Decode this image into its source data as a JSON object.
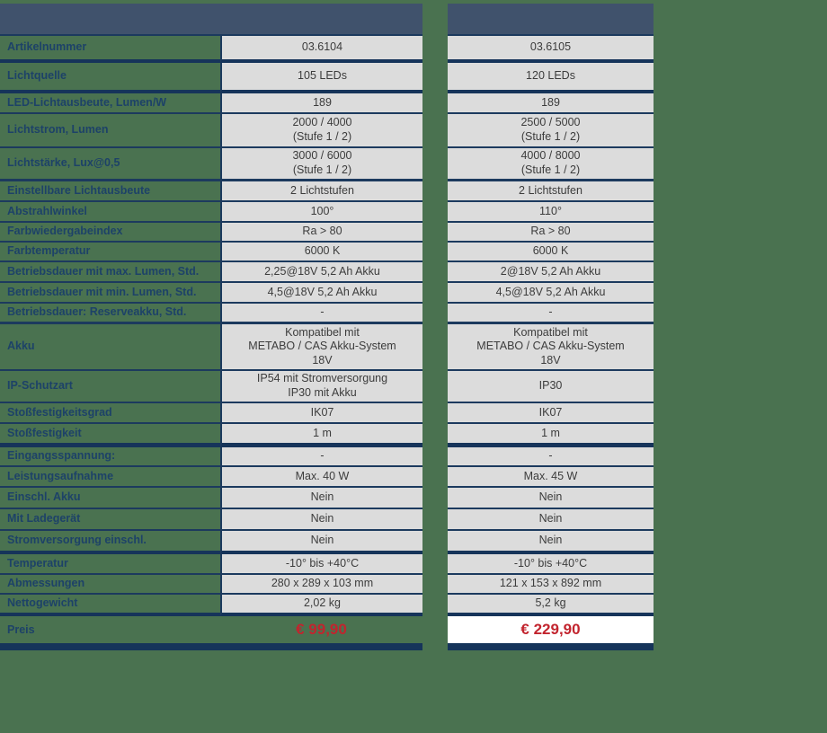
{
  "colors": {
    "background_green": "#4a7250",
    "header_slate": "#40526c",
    "separator_navy": "#1c3a5e",
    "cell_gray": "#dcdcdc",
    "label_text": "#1d4268",
    "price_red": "#c2242e",
    "price_cell_white": "#ffffff"
  },
  "table": {
    "header_col1": "",
    "header_col2": "",
    "rows": [
      {
        "label": "Artikelnummer",
        "col1": "03.6104",
        "col2": "03.6105"
      },
      {
        "label": "Lichtquelle",
        "col1": "105 LEDs",
        "col2": "120 LEDs"
      },
      {
        "label": "LED-Lichtausbeute, Lumen/W",
        "col1": "189",
        "col2": "189"
      },
      {
        "label": "Lichtstrom, Lumen",
        "col1": "2000 / 4000\n(Stufe 1 / 2)",
        "col2": "2500 / 5000\n(Stufe 1 / 2)"
      },
      {
        "label": "Lichtstärke, Lux@0,5",
        "col1": "3000 / 6000\n(Stufe 1 / 2)",
        "col2": "4000 / 8000\n(Stufe 1 / 2)"
      },
      {
        "label": "Einstellbare Lichtausbeute",
        "col1": "2 Lichtstufen",
        "col2": "2 Lichtstufen"
      },
      {
        "label": "Abstrahlwinkel",
        "col1": "100°",
        "col2": "110°"
      },
      {
        "label": "Farbwiedergabeindex",
        "col1": "Ra > 80",
        "col2": "Ra > 80"
      },
      {
        "label": "Farbtemperatur",
        "col1": "6000 K",
        "col2": "6000 K"
      },
      {
        "label": "Betriebsdauer mit max. Lumen, Std.",
        "col1": "2,25@18V 5,2 Ah Akku",
        "col2": "2@18V 5,2 Ah Akku"
      },
      {
        "label": "Betriebsdauer mit min. Lumen, Std.",
        "col1": "4,5@18V 5,2 Ah Akku",
        "col2": "4,5@18V 5,2 Ah Akku"
      },
      {
        "label": "Betriebsdauer: Reserveakku, Std.",
        "col1": "-",
        "col2": "-"
      },
      {
        "label": "Akku",
        "col1": "Kompatibel mit\nMETABO / CAS Akku-System\n18V",
        "col2": "Kompatibel mit\nMETABO / CAS Akku-System\n18V"
      },
      {
        "label": "IP-Schutzart",
        "col1": "IP54 mit Stromversorgung\nIP30 mit Akku",
        "col2": "IP30"
      },
      {
        "label": "Stoßfestigkeitsgrad",
        "col1": "IK07",
        "col2": "IK07"
      },
      {
        "label": "Stoßfestigkeit",
        "col1": "1 m",
        "col2": "1 m"
      },
      {
        "label": "Eingangsspannung:",
        "col1": "-",
        "col2": "-"
      },
      {
        "label": "Leistungsaufnahme",
        "col1": "Max. 40 W",
        "col2": "Max. 45 W"
      },
      {
        "label": "Einschl. Akku",
        "col1": "Nein",
        "col2": "Nein"
      },
      {
        "label": "Mit Ladegerät",
        "col1": "Nein",
        "col2": "Nein"
      },
      {
        "label": "Stromversorgung einschl.",
        "col1": "Nein",
        "col2": "Nein"
      },
      {
        "label": "Temperatur",
        "col1": "-10° bis +40°C",
        "col2": "-10° bis +40°C"
      },
      {
        "label": "Abmessungen",
        "col1": "280 x 289 x 103 mm",
        "col2": "121 x 153 x 892 mm"
      },
      {
        "label": "Nettogewicht",
        "col1": "2,02 kg",
        "col2": "5,2 kg"
      }
    ],
    "price": {
      "label": "Preis",
      "col1": "€ 99,90",
      "col2": "€ 229,90"
    }
  }
}
